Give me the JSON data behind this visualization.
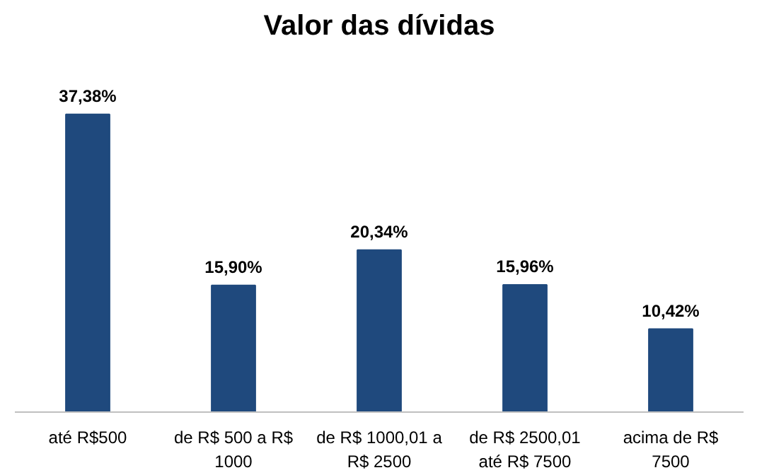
{
  "chart_data": {
    "type": "bar",
    "title": "Valor das dívidas",
    "categories": [
      "até R$500",
      "de R$ 500 a R$ 1000",
      "de R$ 1000,01 a R$ 2500",
      "de R$ 2500,01 até R$ 7500",
      "acima de R$ 7500"
    ],
    "values": [
      37.38,
      15.9,
      20.34,
      15.96,
      10.42
    ],
    "value_labels": [
      "37,38%",
      "15,90%",
      "20,34%",
      "15,96%",
      "10,42%"
    ],
    "color": "#1f497d",
    "grid": false
  }
}
